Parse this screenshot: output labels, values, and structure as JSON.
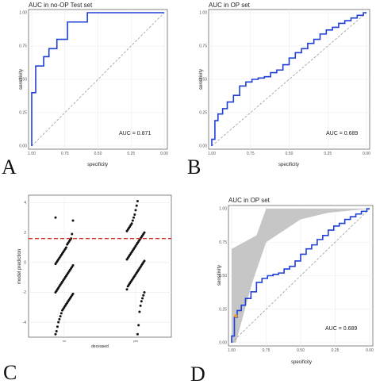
{
  "chart_data": [
    {
      "panel_label": "A",
      "type": "line",
      "title": "AUC in no-OP Test set",
      "xlabel": "specificity",
      "ylabel": "sensitivity",
      "x_reversed": true,
      "xlim": [
        1.0,
        0.0
      ],
      "ylim": [
        0.0,
        1.0
      ],
      "xticks": [
        "1.00",
        "0.75",
        "0.50",
        "0.25",
        "0.00"
      ],
      "yticks": [
        "0.00",
        "0.25",
        "0.50",
        "0.75",
        "1.00"
      ],
      "annotation": "AUC = 0.871",
      "grid": true,
      "line_color": "#1f3fd6",
      "diagonal_color": "#9a9a9a",
      "series": [
        {
          "x": [
            1.0,
            1.0,
            0.97,
            0.97,
            0.91,
            0.91,
            0.87,
            0.87,
            0.81,
            0.81,
            0.73,
            0.73,
            0.66,
            0.66,
            0.58,
            0.58,
            0.0
          ],
          "y": [
            0.0,
            0.4,
            0.4,
            0.6,
            0.6,
            0.67,
            0.67,
            0.73,
            0.73,
            0.8,
            0.8,
            0.93,
            0.93,
            0.93,
            0.93,
            1.0,
            1.0
          ]
        }
      ]
    },
    {
      "panel_label": "B",
      "type": "line",
      "title": "AUC in OP set",
      "xlabel": "specificity",
      "ylabel": "sensitivity",
      "x_reversed": true,
      "xlim": [
        1.0,
        0.0
      ],
      "ylim": [
        0.0,
        1.0
      ],
      "xticks": [
        "1.00",
        "0.75",
        "0.50",
        "0.25",
        "0.00"
      ],
      "yticks": [
        "0.00",
        "0.25",
        "0.50",
        "0.75",
        "1.00"
      ],
      "annotation": "AUC = 0.689",
      "grid": true,
      "line_color": "#1f3fd6",
      "diagonal_color": "#9a9a9a",
      "series": [
        {
          "x": [
            1.0,
            1.0,
            0.98,
            0.98,
            0.96,
            0.96,
            0.93,
            0.93,
            0.9,
            0.9,
            0.86,
            0.86,
            0.82,
            0.82,
            0.78,
            0.78,
            0.74,
            0.74,
            0.7,
            0.7,
            0.66,
            0.66,
            0.62,
            0.62,
            0.58,
            0.58,
            0.54,
            0.54,
            0.5,
            0.5,
            0.46,
            0.46,
            0.42,
            0.42,
            0.38,
            0.38,
            0.34,
            0.34,
            0.3,
            0.3,
            0.26,
            0.26,
            0.22,
            0.22,
            0.18,
            0.18,
            0.14,
            0.14,
            0.1,
            0.1,
            0.06,
            0.06,
            0.02,
            0.02,
            0.0
          ],
          "y": [
            0.0,
            0.05,
            0.05,
            0.19,
            0.19,
            0.24,
            0.24,
            0.28,
            0.28,
            0.33,
            0.33,
            0.38,
            0.38,
            0.45,
            0.45,
            0.48,
            0.48,
            0.5,
            0.5,
            0.51,
            0.51,
            0.52,
            0.52,
            0.55,
            0.55,
            0.57,
            0.57,
            0.61,
            0.61,
            0.66,
            0.66,
            0.7,
            0.7,
            0.73,
            0.73,
            0.77,
            0.77,
            0.8,
            0.8,
            0.84,
            0.84,
            0.87,
            0.87,
            0.89,
            0.89,
            0.92,
            0.92,
            0.94,
            0.94,
            0.96,
            0.96,
            0.98,
            0.98,
            1.0,
            1.0
          ]
        }
      ]
    },
    {
      "panel_label": "C",
      "type": "scatter",
      "title": "",
      "xlabel": "deceased",
      "ylabel": "model prediction",
      "categories": [
        "no",
        "yes"
      ],
      "yticks": [
        "-4",
        "-2",
        "0",
        "2",
        "4"
      ],
      "ylim": [
        -5,
        4.5
      ],
      "threshold": 1.6,
      "threshold_color": "#e03020",
      "grid": true,
      "series": [
        {
          "name": "no",
          "values": [
            3.0,
            2.8,
            1.9,
            1.6,
            1.5,
            1.4,
            1.3,
            1.2,
            1.0,
            0.9,
            0.8,
            0.7,
            0.6,
            0.5,
            0.4,
            0.3,
            0.2,
            0.1,
            0.0,
            -0.1,
            -0.2,
            -0.3,
            -0.4,
            -0.5,
            -0.6,
            -0.7,
            -0.8,
            -0.9,
            -1.0,
            -1.1,
            -1.2,
            -1.3,
            -1.4,
            -1.5,
            -1.6,
            -1.7,
            -1.8,
            -1.9,
            -2.0,
            -2.1,
            -2.2,
            -2.3,
            -2.4,
            -2.5,
            -2.6,
            -2.7,
            -2.8,
            -2.9,
            -3.0,
            -3.1,
            -3.2,
            -3.4,
            -3.6,
            -3.8,
            -4.0,
            -4.3,
            -4.6,
            -4.8
          ]
        },
        {
          "name": "yes",
          "values": [
            4.1,
            3.8,
            3.5,
            3.2,
            3.0,
            2.8,
            2.6,
            2.5,
            2.4,
            2.3,
            2.2,
            2.1,
            2.0,
            1.9,
            1.8,
            1.7,
            1.6,
            1.5,
            1.4,
            1.3,
            1.2,
            1.1,
            1.0,
            0.9,
            0.8,
            0.7,
            0.6,
            0.5,
            0.4,
            0.3,
            0.2,
            0.1,
            0.0,
            -0.1,
            -0.2,
            -0.3,
            -0.4,
            -0.5,
            -0.6,
            -0.7,
            -0.8,
            -0.9,
            -1.0,
            -1.1,
            -1.2,
            -1.3,
            -1.4,
            -1.5,
            -1.6,
            -1.8,
            -2.0,
            -2.2,
            -2.4,
            -2.6,
            -2.9,
            -3.3,
            -4.2,
            -4.8
          ]
        }
      ]
    },
    {
      "panel_label": "D",
      "type": "line",
      "title": "AUC in OP set",
      "xlabel": "specificity",
      "ylabel": "sensitivity",
      "x_reversed": true,
      "xlim": [
        1.0,
        0.0
      ],
      "ylim": [
        0.0,
        1.0
      ],
      "xticks": [
        "1.00",
        "0.75",
        "0.50",
        "0.25",
        "0.00"
      ],
      "yticks": [
        "0.00",
        "0.25",
        "0.50",
        "0.75",
        "1.00"
      ],
      "annotation": "AUC = 0.689",
      "grid": true,
      "line_color": "#1f3fd6",
      "diagonal_color": "#9a9a9a",
      "ci_color": "#bcbcbc",
      "point_color": "#f0a030",
      "highlight_point": {
        "x": 0.97,
        "y": 0.2
      },
      "ci_upper": {
        "x": [
          1.0,
          1.0,
          0.82,
          0.75,
          0.6,
          0.0
        ],
        "y": [
          0.0,
          0.7,
          0.8,
          1.0,
          1.0,
          1.0
        ]
      },
      "ci_lower": {
        "x": [
          0.0,
          0.3,
          0.5,
          0.75,
          0.85,
          0.97,
          1.0
        ],
        "y": [
          1.0,
          0.97,
          0.92,
          0.75,
          0.45,
          0.0,
          0.0
        ]
      },
      "series": [
        {
          "x": [
            1.0,
            1.0,
            0.98,
            0.98,
            0.96,
            0.96,
            0.93,
            0.93,
            0.9,
            0.9,
            0.86,
            0.86,
            0.82,
            0.82,
            0.78,
            0.78,
            0.74,
            0.74,
            0.7,
            0.7,
            0.66,
            0.66,
            0.62,
            0.62,
            0.58,
            0.58,
            0.54,
            0.54,
            0.5,
            0.5,
            0.46,
            0.46,
            0.42,
            0.42,
            0.38,
            0.38,
            0.34,
            0.34,
            0.3,
            0.3,
            0.26,
            0.26,
            0.22,
            0.22,
            0.18,
            0.18,
            0.14,
            0.14,
            0.1,
            0.1,
            0.06,
            0.06,
            0.02,
            0.02,
            0.0
          ],
          "y": [
            0.0,
            0.05,
            0.05,
            0.19,
            0.19,
            0.24,
            0.24,
            0.28,
            0.28,
            0.33,
            0.33,
            0.38,
            0.38,
            0.45,
            0.45,
            0.48,
            0.48,
            0.5,
            0.5,
            0.51,
            0.51,
            0.52,
            0.52,
            0.55,
            0.55,
            0.57,
            0.57,
            0.61,
            0.61,
            0.66,
            0.66,
            0.7,
            0.7,
            0.73,
            0.73,
            0.77,
            0.77,
            0.8,
            0.8,
            0.84,
            0.84,
            0.87,
            0.87,
            0.89,
            0.89,
            0.92,
            0.92,
            0.94,
            0.94,
            0.96,
            0.96,
            0.98,
            0.98,
            1.0,
            1.0
          ]
        }
      ]
    }
  ]
}
